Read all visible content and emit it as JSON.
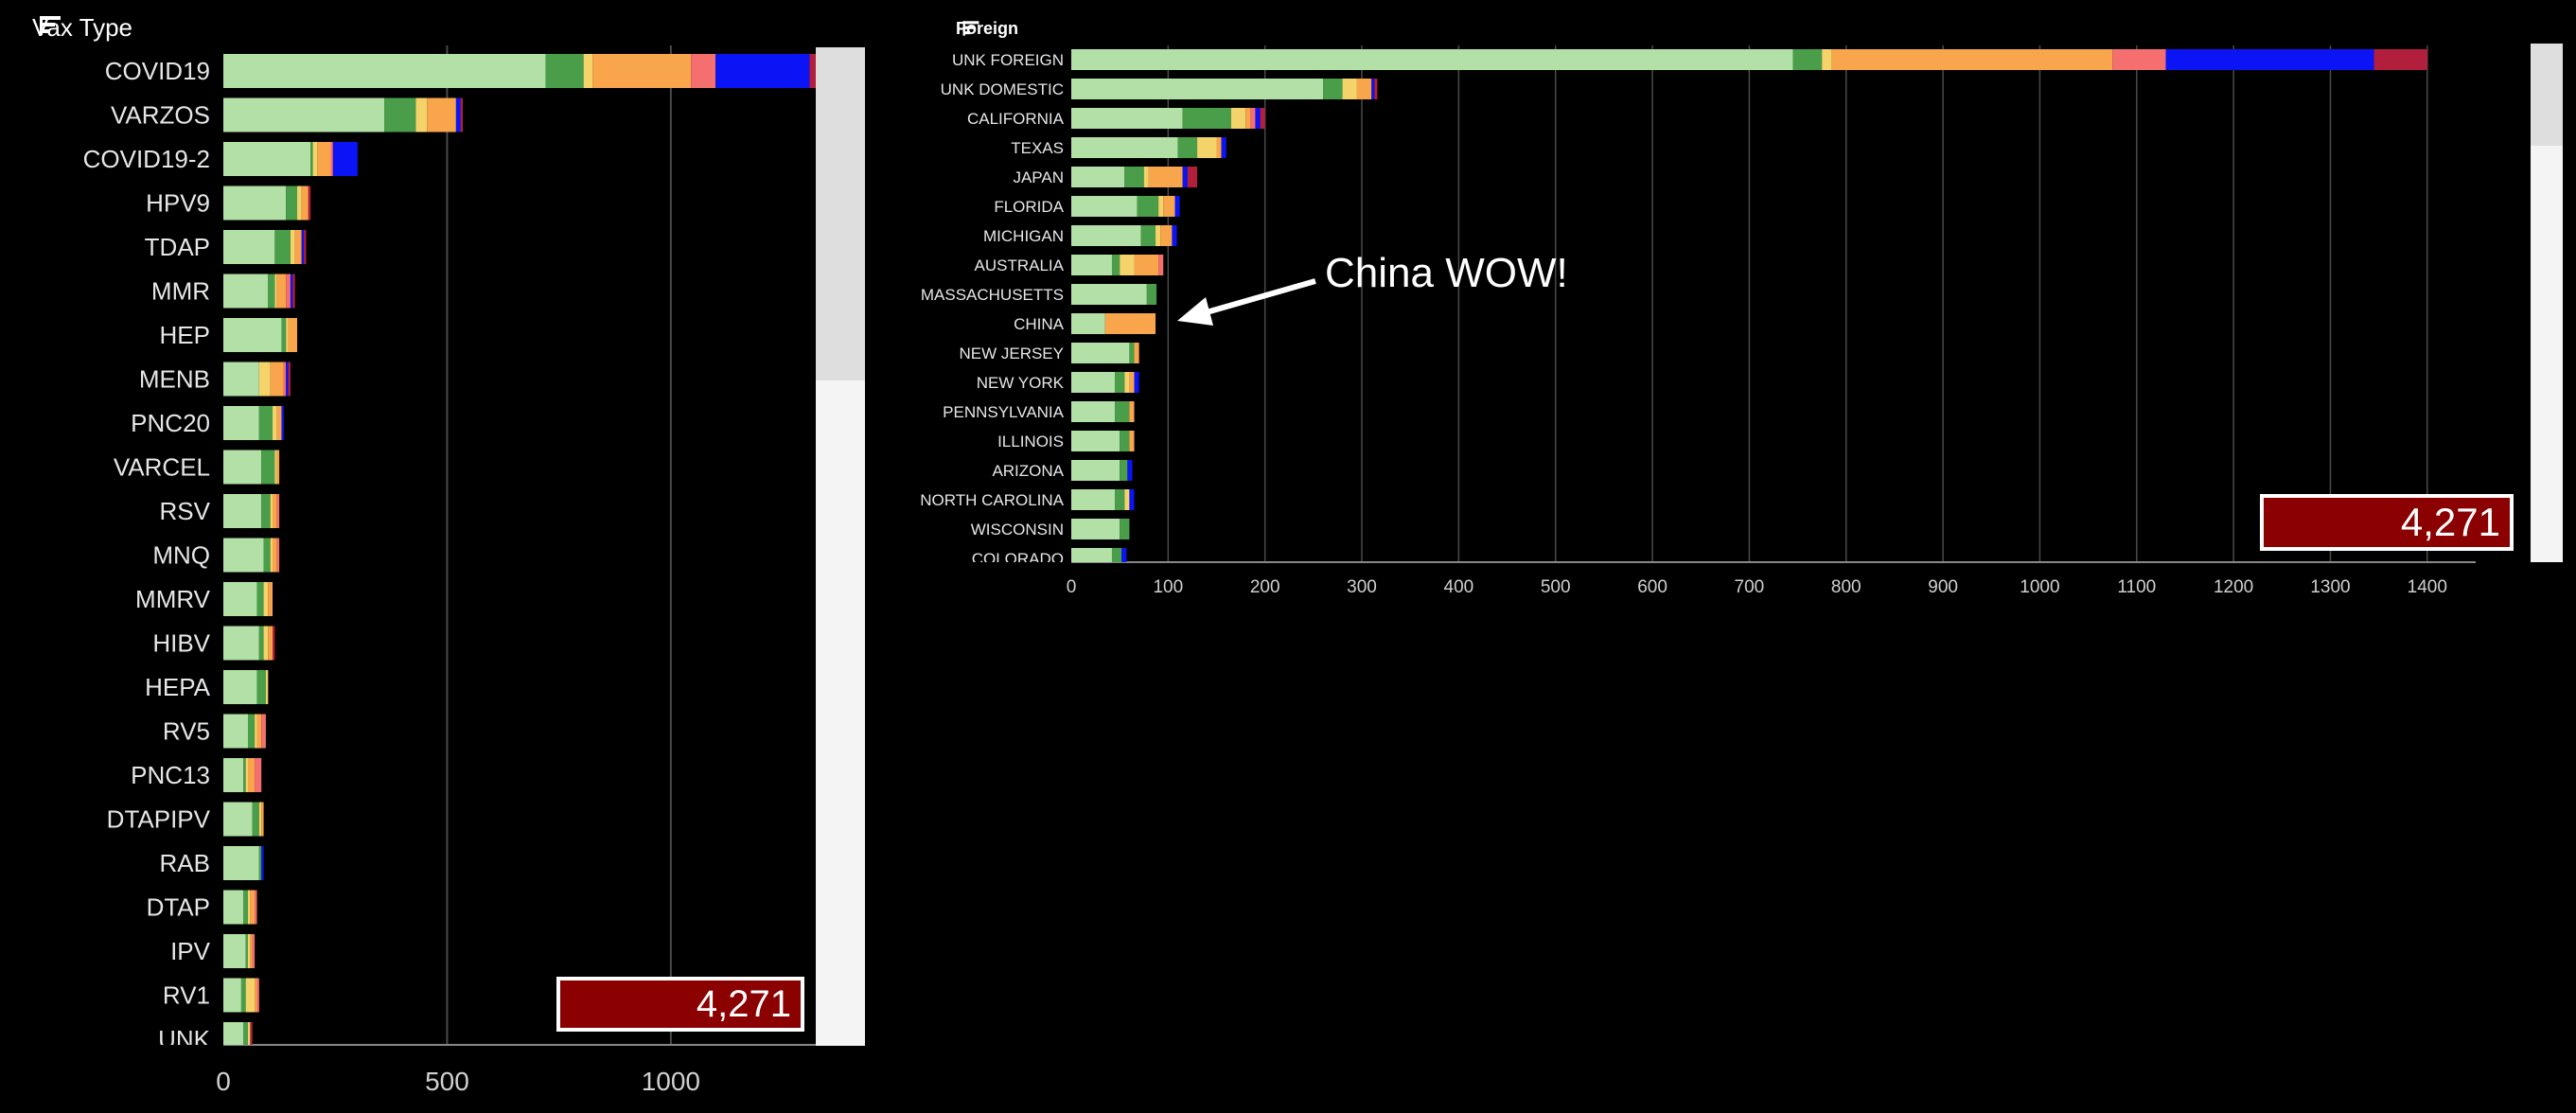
{
  "colors": {
    "segments": [
      "#b3e0a6",
      "#4a9e4a",
      "#f5d36b",
      "#f8a54c",
      "#f56f6f",
      "#0a14f5",
      "#b11f3c"
    ],
    "grid": "#4a4a4a",
    "total_bg": "#8b0000"
  },
  "vax_chart": {
    "title": "Vax Type",
    "total_label": "4,271",
    "icon": "sort-descending-icon",
    "chart_data": {
      "type": "bar",
      "orientation": "horizontal",
      "stacked": true,
      "xlim": [
        0,
        1400
      ],
      "x_ticks": [
        "0",
        "500",
        "1000"
      ],
      "x_tick_values": [
        0,
        500,
        1000
      ],
      "grid": true,
      "categories": [
        "COVID19",
        "VARZOS",
        "COVID19-2",
        "HPV9",
        "TDAP",
        "MMR",
        "HEP",
        "MENB",
        "PNC20",
        "VARCEL",
        "RSV",
        "MNQ",
        "MMRV",
        "HIBV",
        "HEPA",
        "RV5",
        "PNC13",
        "DTAPIPV",
        "RAB",
        "DTAP",
        "IPV",
        "RV1",
        "UNK"
      ],
      "segments": [
        [
          720,
          85,
          20,
          220,
          55,
          210,
          75
        ],
        [
          360,
          70,
          25,
          65,
          0,
          10,
          5
        ],
        [
          195,
          5,
          10,
          30,
          5,
          55,
          0
        ],
        [
          140,
          25,
          10,
          15,
          0,
          0,
          5
        ],
        [
          115,
          35,
          10,
          15,
          0,
          5,
          5
        ],
        [
          100,
          15,
          5,
          20,
          10,
          5,
          5
        ],
        [
          130,
          10,
          5,
          20,
          0,
          0,
          0
        ],
        [
          80,
          0,
          25,
          30,
          5,
          5,
          5
        ],
        [
          80,
          30,
          10,
          10,
          0,
          5,
          0
        ],
        [
          85,
          30,
          5,
          5,
          0,
          0,
          0
        ],
        [
          85,
          20,
          5,
          10,
          5,
          0,
          0
        ],
        [
          90,
          15,
          5,
          10,
          5,
          0,
          0
        ],
        [
          75,
          15,
          10,
          10,
          0,
          0,
          0
        ],
        [
          80,
          10,
          10,
          10,
          0,
          0,
          5
        ],
        [
          75,
          20,
          5,
          0,
          0,
          0,
          0
        ],
        [
          55,
          15,
          5,
          10,
          10,
          0,
          0
        ],
        [
          45,
          5,
          5,
          15,
          15,
          0,
          0
        ],
        [
          65,
          15,
          5,
          5,
          0,
          0,
          0
        ],
        [
          80,
          5,
          0,
          0,
          0,
          5,
          0
        ],
        [
          45,
          10,
          5,
          10,
          5,
          0,
          0
        ],
        [
          50,
          5,
          5,
          5,
          5,
          0,
          0
        ],
        [
          40,
          10,
          20,
          5,
          5,
          0,
          0
        ],
        [
          45,
          10,
          5,
          0,
          0,
          0,
          5
        ]
      ]
    }
  },
  "foreign_chart": {
    "title": "Foreign",
    "total_label": "4,271",
    "icon": "sort-descending-icon",
    "annotation": "China WOW!",
    "chart_data": {
      "type": "bar",
      "orientation": "horizontal",
      "stacked": true,
      "xlim": [
        0,
        1450
      ],
      "x_ticks": [
        "0",
        "100",
        "200",
        "300",
        "400",
        "500",
        "600",
        "700",
        "800",
        "900",
        "1000",
        "1100",
        "1200",
        "1300",
        "1400"
      ],
      "x_tick_values": [
        0,
        100,
        200,
        300,
        400,
        500,
        600,
        700,
        800,
        900,
        1000,
        1100,
        1200,
        1300,
        1400
      ],
      "grid": true,
      "categories": [
        "UNK FOREIGN",
        "UNK DOMESTIC",
        "CALIFORNIA",
        "TEXAS",
        "JAPAN",
        "FLORIDA",
        "MICHIGAN",
        "AUSTRALIA",
        "MASSACHUSETTS",
        "CHINA",
        "NEW JERSEY",
        "NEW YORK",
        "PENNSYLVANIA",
        "ILLINOIS",
        "ARIZONA",
        "NORTH CAROLINA",
        "WISCONSIN",
        "COLORADO"
      ],
      "segments": [
        [
          745,
          30,
          10,
          290,
          55,
          215,
          55
        ],
        [
          260,
          20,
          15,
          15,
          0,
          3,
          3
        ],
        [
          115,
          50,
          15,
          5,
          5,
          5,
          5
        ],
        [
          110,
          20,
          20,
          5,
          0,
          5,
          0
        ],
        [
          55,
          20,
          5,
          35,
          0,
          5,
          10
        ],
        [
          68,
          22,
          5,
          12,
          0,
          5,
          0
        ],
        [
          72,
          15,
          5,
          12,
          0,
          5,
          0
        ],
        [
          42,
          8,
          15,
          25,
          5,
          0,
          0
        ],
        [
          78,
          10,
          0,
          0,
          0,
          0,
          0
        ],
        [
          35,
          0,
          0,
          52,
          0,
          0,
          0
        ],
        [
          60,
          5,
          0,
          5,
          0,
          0,
          0
        ],
        [
          45,
          10,
          5,
          5,
          0,
          5,
          0
        ],
        [
          45,
          15,
          0,
          5,
          0,
          0,
          0
        ],
        [
          50,
          10,
          0,
          5,
          0,
          0,
          0
        ],
        [
          50,
          8,
          0,
          0,
          0,
          5,
          0
        ],
        [
          45,
          10,
          5,
          0,
          0,
          5,
          0
        ],
        [
          50,
          10,
          0,
          0,
          0,
          0,
          0
        ],
        [
          42,
          10,
          0,
          0,
          0,
          5,
          0
        ]
      ]
    }
  }
}
